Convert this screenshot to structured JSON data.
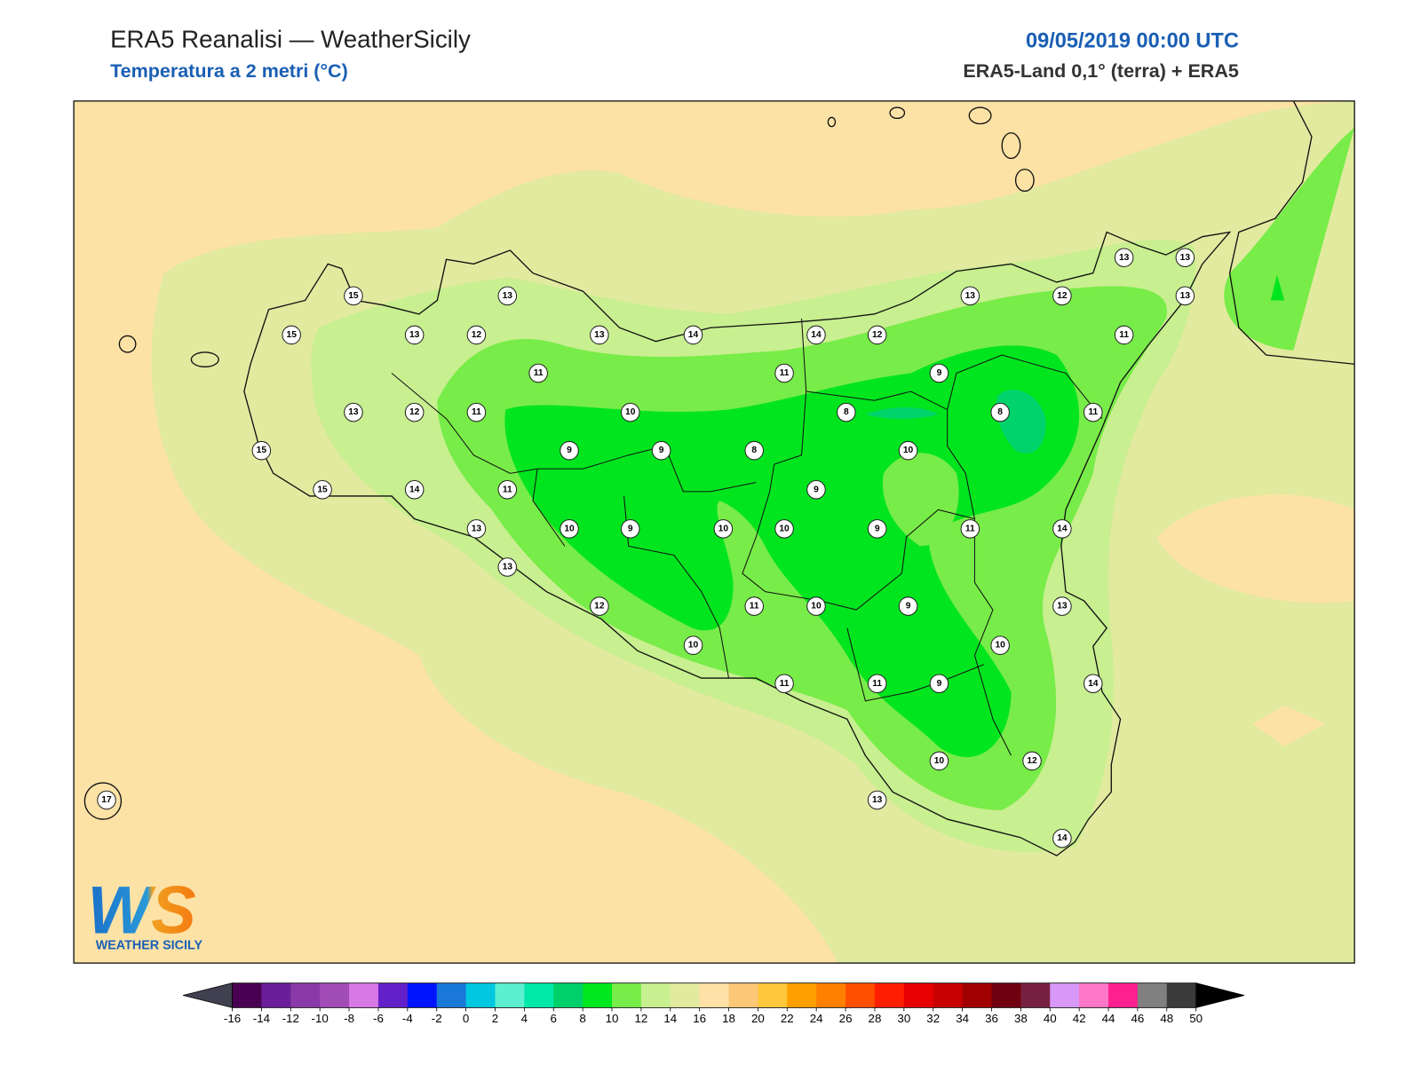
{
  "header": {
    "title": "ERA5 Reanalisi — WeatherSicily",
    "subtitle": "Temperatura a 2 metri (°C)",
    "datetime": "09/05/2019 00:00 UTC",
    "source": "ERA5-Land 0,1° (terra) + ERA5"
  },
  "map": {
    "labels": [
      15,
      13,
      15,
      13,
      12,
      13,
      14,
      14,
      12,
      13,
      12,
      13,
      13,
      13,
      11,
      11,
      11,
      9,
      13,
      12,
      11,
      10,
      8,
      8,
      11,
      15,
      9,
      9,
      8,
      10,
      15,
      14,
      11,
      9,
      13,
      10,
      9,
      10,
      10,
      9,
      11,
      14,
      13,
      12,
      11,
      10,
      9,
      13,
      10,
      10,
      11,
      11,
      9,
      14,
      10,
      12,
      13,
      14,
      17
    ]
  },
  "colorbar": {
    "ticks": [
      -16,
      -14,
      -12,
      -10,
      -8,
      -6,
      -4,
      -2,
      0,
      2,
      4,
      6,
      8,
      10,
      12,
      14,
      16,
      18,
      20,
      22,
      24,
      26,
      28,
      30,
      32,
      34,
      36,
      38,
      40,
      42,
      44,
      46,
      48,
      50
    ],
    "colors": [
      "#4a0052",
      "#6b1e9a",
      "#8a3aa8",
      "#a24cb8",
      "#d878e6",
      "#6420c8",
      "#0014ff",
      "#1a78d8",
      "#00c8e0",
      "#5cf0d0",
      "#00e8a8",
      "#00d06a",
      "#00e81e",
      "#78ec48",
      "#c8f090",
      "#e2eaa0",
      "#ffe0a6",
      "#fcc878",
      "#ffc83c",
      "#ffa000",
      "#ff8000",
      "#ff5000",
      "#ff1e00",
      "#e60000",
      "#c80000",
      "#a00000",
      "#700010",
      "#782040",
      "#d898f8",
      "#ff78c8",
      "#ff2090",
      "#808080",
      "#3a3a3a"
    ],
    "under_color": "#404050",
    "over_color": "#000000"
  },
  "logo": {
    "text": "WS",
    "caption": "WEATHER SICILY"
  }
}
